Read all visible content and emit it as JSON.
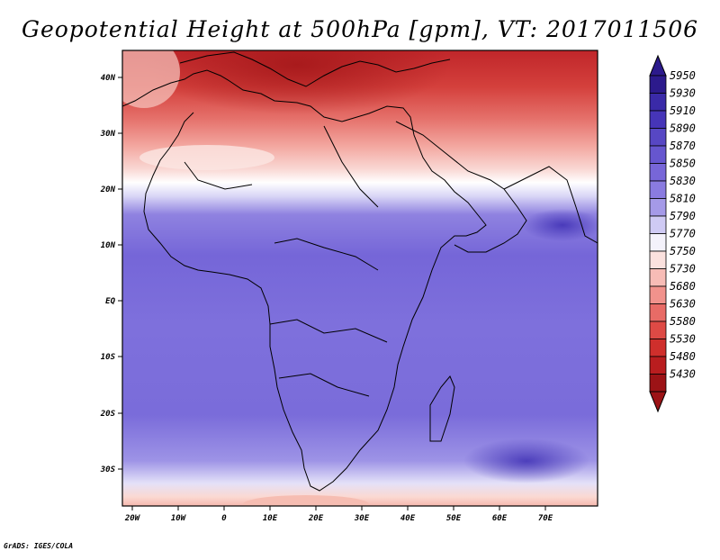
{
  "title": "Geopotential Height at 500hPa [gpm], VT: 2017011506",
  "footer": "GrADS: IGES/COLA",
  "map": {
    "lon_labels": [
      "20W",
      "10W",
      "0",
      "10E",
      "20E",
      "30E",
      "40E",
      "50E",
      "60E",
      "70E"
    ],
    "lat_labels": [
      "40N",
      "30N",
      "20N",
      "10N",
      "EQ",
      "10S",
      "20S",
      "30S"
    ]
  },
  "colorbar": {
    "levels": [
      "5950",
      "5930",
      "5910",
      "5890",
      "5870",
      "5850",
      "5830",
      "5810",
      "5790",
      "5770",
      "5750",
      "5730",
      "5680",
      "5630",
      "5580",
      "5530",
      "5480",
      "5430"
    ],
    "colors": [
      "#2c1a8c",
      "#3a2aa8",
      "#4635b8",
      "#5747c4",
      "#6656cf",
      "#7766d8",
      "#8a7be0",
      "#a59ae8",
      "#cfcaf4",
      "#f4f2fb",
      "#fbe1de",
      "#f7bcb6",
      "#f1928c",
      "#e86b66",
      "#de4a45",
      "#cf2f2c",
      "#b91d1f",
      "#9c1316"
    ]
  }
}
